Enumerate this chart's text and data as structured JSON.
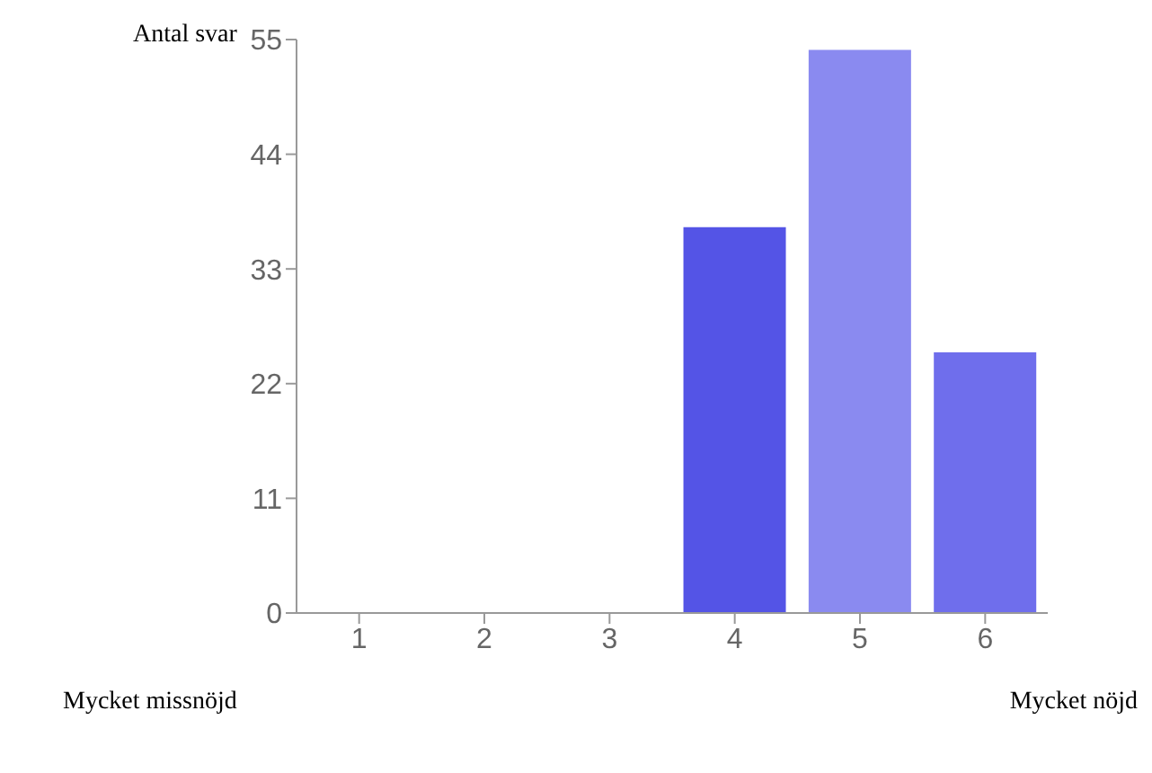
{
  "chart_data": {
    "type": "bar",
    "ylabel": "Antal svar",
    "categories": [
      "1",
      "2",
      "3",
      "4",
      "5",
      "6"
    ],
    "values": [
      0,
      0,
      0,
      37,
      54,
      25
    ],
    "colors": [
      "#5454e6",
      "#5454e6",
      "#5454e6",
      "#5454e6",
      "#8a8af0",
      "#6f6eec"
    ],
    "ylim": [
      0,
      55
    ],
    "yticks": [
      0,
      11,
      22,
      33,
      44,
      55
    ],
    "grid": false,
    "legend": false,
    "annotations": [
      "Mycket missnöjd",
      "Mycket nöjd"
    ]
  }
}
